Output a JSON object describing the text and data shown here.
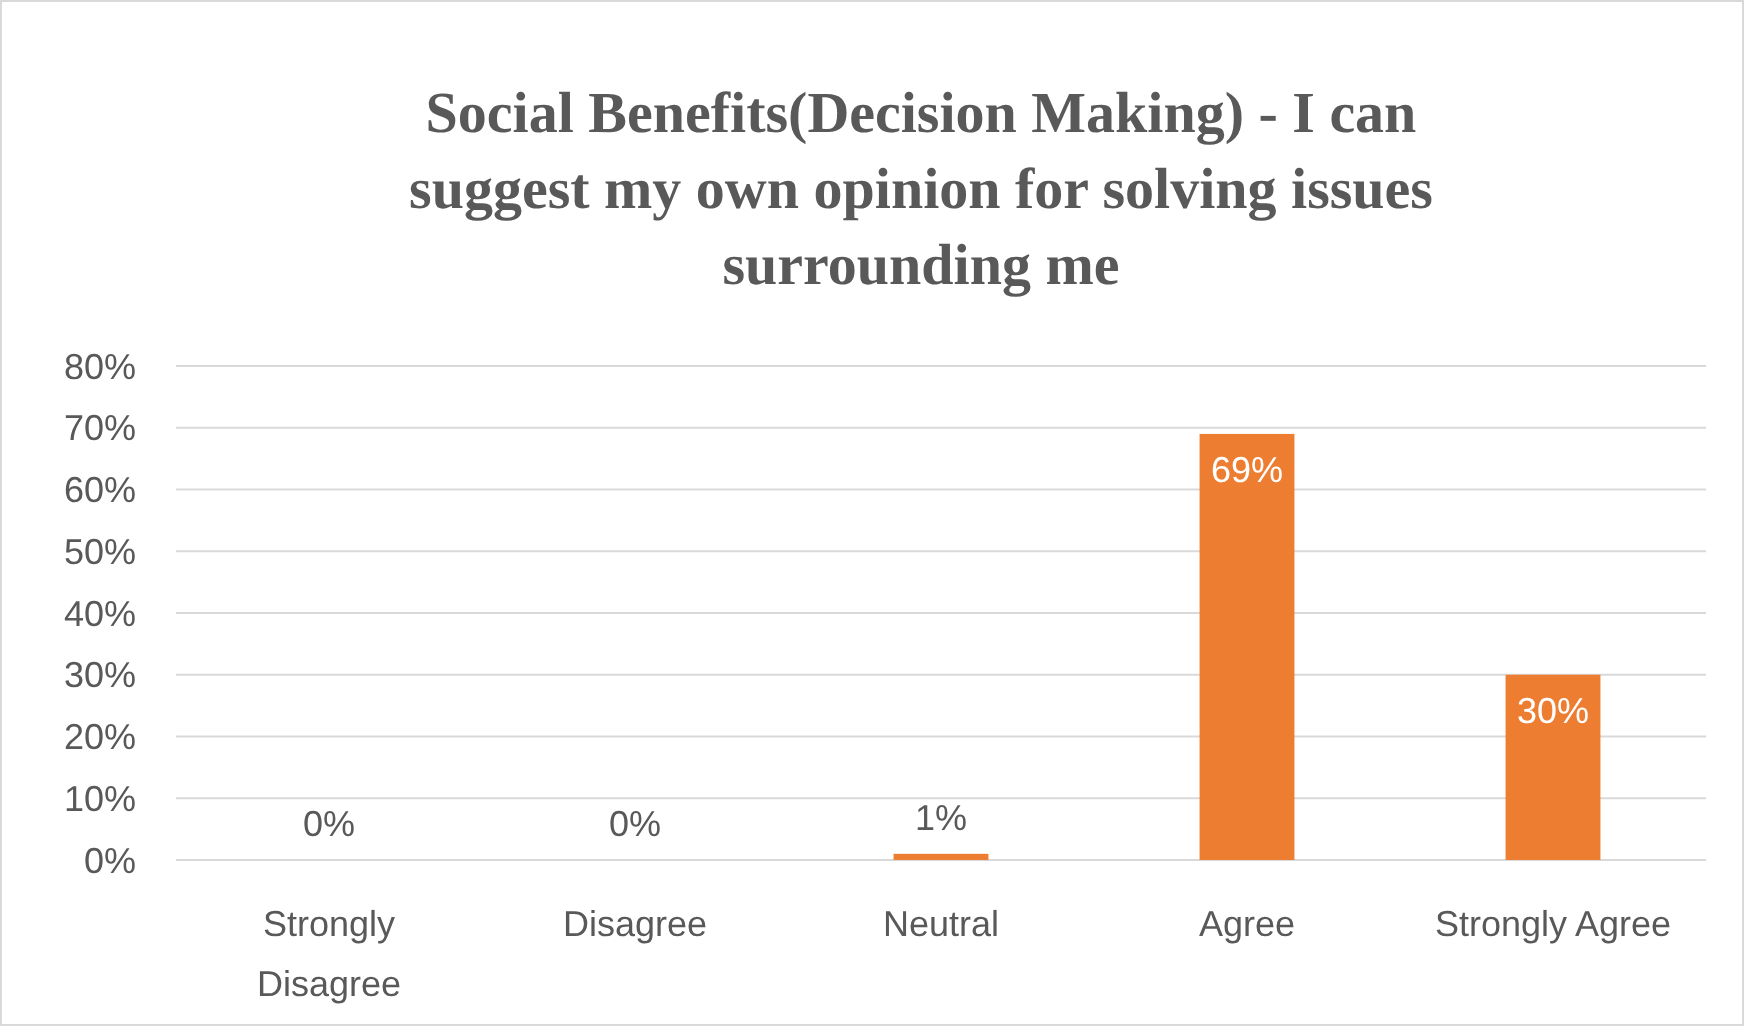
{
  "chart_data": {
    "type": "bar",
    "title": "Social Benefits(Decision Making) - I can suggest my own opinion for solving issues surrounding me",
    "categories": [
      "Strongly Disagree",
      "Disagree",
      "Neutral",
      "Agree",
      "Strongly Agree"
    ],
    "values": [
      0,
      0,
      1,
      69,
      30
    ],
    "color": "#ed7d31",
    "value_labels": [
      "0%",
      "0%",
      "1%",
      "69%",
      "30%"
    ],
    "ylim": [
      0,
      80
    ],
    "yticks": [
      {
        "value": 0,
        "label": "0%"
      },
      {
        "value": 10,
        "label": "10%"
      },
      {
        "value": 20,
        "label": "20%"
      },
      {
        "value": 30,
        "label": "30%"
      },
      {
        "value": 40,
        "label": "40%"
      },
      {
        "value": 50,
        "label": "50%"
      },
      {
        "value": 60,
        "label": "60%"
      },
      {
        "value": 70,
        "label": "70%"
      },
      {
        "value": 80,
        "label": "80%"
      }
    ],
    "grid": "y"
  }
}
